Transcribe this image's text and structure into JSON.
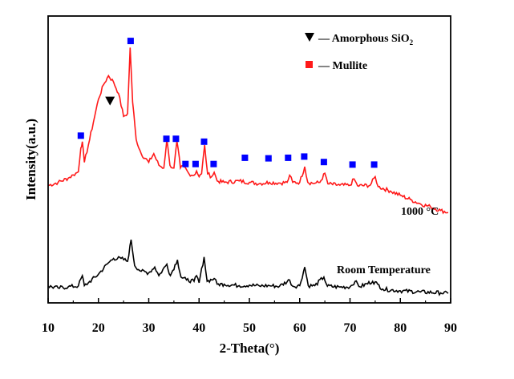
{
  "chart_data": {
    "type": "line",
    "title": "",
    "xlabel": "2-Theta(°)",
    "ylabel": "Intensity(a.u.)",
    "xlim": [
      10,
      90
    ],
    "ylim": [
      0,
      100
    ],
    "x_ticks": [
      "10",
      "20",
      "30",
      "40",
      "50",
      "60",
      "70",
      "80",
      "90"
    ],
    "grid": false,
    "legend_position": "top-right",
    "legend": [
      {
        "marker": "triangle-down",
        "color": "#000000",
        "label_prefix": "— Amorphous SiO",
        "label_sub": "2"
      },
      {
        "marker": "square",
        "color": "#ff1a1a",
        "label_prefix": "— Mullite",
        "label_sub": ""
      }
    ],
    "colors": {
      "red_series": "#ff1a1a",
      "black_series": "#000000",
      "mullite_marker": "#0000ff",
      "sio2_marker": "#000000"
    },
    "series": [
      {
        "name": "1000 °C",
        "label": "1000 °C",
        "color": "#ff1a1a",
        "points": [
          [
            10,
            40.9
          ],
          [
            12,
            42.0
          ],
          [
            14,
            43.5
          ],
          [
            15,
            44.6
          ],
          [
            16,
            45.7
          ],
          [
            16.5,
            54.0
          ],
          [
            16.8,
            56.2
          ],
          [
            17.2,
            49.0
          ],
          [
            18,
            55.0
          ],
          [
            19,
            63.0
          ],
          [
            20,
            71.0
          ],
          [
            21,
            76.0
          ],
          [
            22,
            79.2
          ],
          [
            23,
            77.0
          ],
          [
            24,
            73.0
          ],
          [
            25,
            65.0
          ],
          [
            25.8,
            66.0
          ],
          [
            26.3,
            89.0
          ],
          [
            26.8,
            70.0
          ],
          [
            27.5,
            57.0
          ],
          [
            28.5,
            52.0
          ],
          [
            30,
            49.0
          ],
          [
            31,
            52.0
          ],
          [
            32,
            48.0
          ],
          [
            33,
            47.0
          ],
          [
            33.6,
            57.0
          ],
          [
            34.2,
            48.0
          ],
          [
            35,
            47.0
          ],
          [
            35.6,
            56.5
          ],
          [
            36.3,
            47.0
          ],
          [
            37,
            47.5
          ],
          [
            38,
            45.0
          ],
          [
            39,
            44.5
          ],
          [
            39.5,
            46.0
          ],
          [
            40,
            44.0
          ],
          [
            40.5,
            45.0
          ],
          [
            41.1,
            55.0
          ],
          [
            41.7,
            45.0
          ],
          [
            42.5,
            44.0
          ],
          [
            43,
            45.5
          ],
          [
            43.6,
            42.5
          ],
          [
            45,
            42.0
          ],
          [
            48,
            42.5
          ],
          [
            50,
            42.0
          ],
          [
            52,
            41.6
          ],
          [
            54,
            42.0
          ],
          [
            56,
            41.8
          ],
          [
            57.5,
            42.0
          ],
          [
            58,
            44.5
          ],
          [
            58.6,
            42.0
          ],
          [
            60,
            42.0
          ],
          [
            61,
            47.5
          ],
          [
            61.6,
            42.0
          ],
          [
            63,
            41.7
          ],
          [
            64,
            42.0
          ],
          [
            65,
            45.2
          ],
          [
            65.6,
            41.5
          ],
          [
            68,
            41.0
          ],
          [
            70,
            41.0
          ],
          [
            70.8,
            43.2
          ],
          [
            71.5,
            40.8
          ],
          [
            74,
            41.0
          ],
          [
            75,
            44.0
          ],
          [
            75.6,
            40.5
          ],
          [
            78,
            39.0
          ],
          [
            80,
            37.5
          ],
          [
            82,
            36.0
          ],
          [
            84,
            34.5
          ],
          [
            86,
            33.5
          ],
          [
            88,
            32.2
          ],
          [
            89.5,
            31.5
          ]
        ]
      },
      {
        "name": "Room Temperature",
        "label": "Room Temperature",
        "color": "#000000",
        "points": [
          [
            10,
            5.8
          ],
          [
            12,
            5.2
          ],
          [
            14,
            5.6
          ],
          [
            16,
            5.9
          ],
          [
            16.8,
            9.5
          ],
          [
            17.2,
            6.0
          ],
          [
            18,
            7.0
          ],
          [
            20,
            10.0
          ],
          [
            22,
            14.0
          ],
          [
            23,
            15.5
          ],
          [
            24.5,
            15.5
          ],
          [
            25.8,
            14.5
          ],
          [
            26.5,
            22.0
          ],
          [
            27.2,
            13.0
          ],
          [
            28.5,
            11.0
          ],
          [
            30,
            10.5
          ],
          [
            31.2,
            12.5
          ],
          [
            32,
            9.5
          ],
          [
            33.6,
            13.5
          ],
          [
            34.3,
            9.5
          ],
          [
            35.7,
            15.0
          ],
          [
            36.4,
            9.0
          ],
          [
            37.5,
            8.0
          ],
          [
            39,
            7.5
          ],
          [
            39.5,
            9.5
          ],
          [
            40,
            7.0
          ],
          [
            41,
            16.0
          ],
          [
            41.6,
            7.5
          ],
          [
            43,
            8.5
          ],
          [
            43.6,
            6.5
          ],
          [
            45,
            6.5
          ],
          [
            48,
            6.0
          ],
          [
            50,
            6.2
          ],
          [
            52,
            5.9
          ],
          [
            54,
            6.0
          ],
          [
            56,
            5.8
          ],
          [
            58,
            8.0
          ],
          [
            58.6,
            5.8
          ],
          [
            60,
            6.0
          ],
          [
            61,
            12.5
          ],
          [
            61.7,
            6.0
          ],
          [
            63,
            6.0
          ],
          [
            64.8,
            9.0
          ],
          [
            65.5,
            5.8
          ],
          [
            68,
            5.5
          ],
          [
            70,
            5.6
          ],
          [
            71,
            7.5
          ],
          [
            72,
            5.6
          ],
          [
            74.5,
            7.5
          ],
          [
            75.5,
            6.5
          ],
          [
            76.5,
            4.8
          ],
          [
            80,
            4.2
          ],
          [
            84,
            3.8
          ],
          [
            88,
            3.5
          ],
          [
            89.5,
            3.3
          ]
        ]
      }
    ],
    "annotations": {
      "amorphous_sio2_markers": [
        22.3
      ],
      "mullite_markers": [
        [
          16.5,
          58.3
        ],
        [
          26.4,
          91.3
        ],
        [
          33.5,
          57.2
        ],
        [
          35.4,
          57.2
        ],
        [
          41.0,
          56.2
        ],
        [
          37.3,
          48.4
        ],
        [
          39.3,
          48.4
        ],
        [
          42.9,
          48.4
        ],
        [
          49.1,
          50.6
        ],
        [
          53.8,
          50.4
        ],
        [
          57.7,
          50.6
        ],
        [
          60.9,
          51.0
        ],
        [
          64.8,
          49.1
        ],
        [
          70.5,
          48.2
        ],
        [
          74.8,
          48.2
        ]
      ]
    }
  }
}
